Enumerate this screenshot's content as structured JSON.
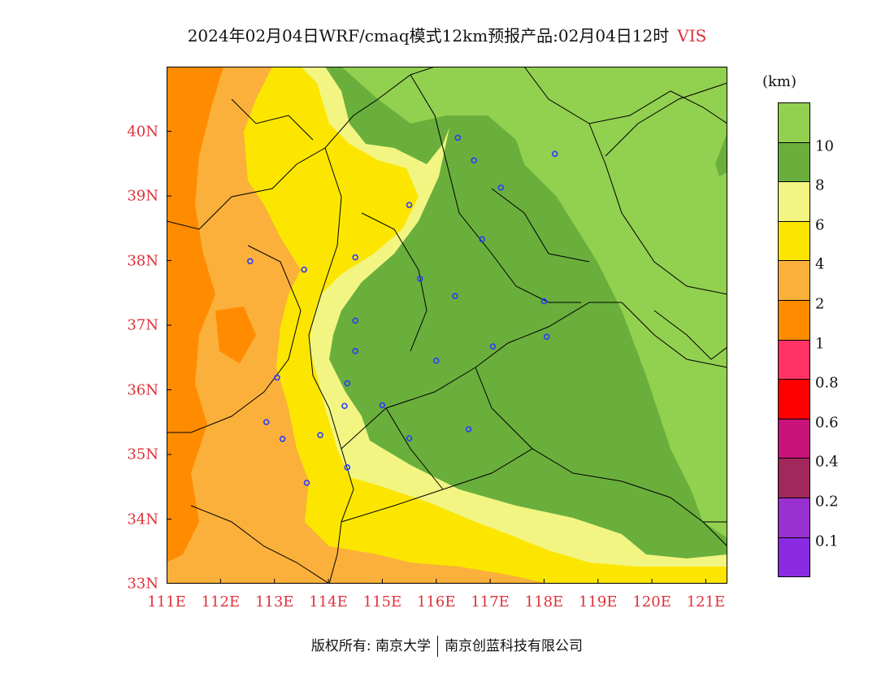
{
  "title": {
    "main": "2024年02月04日WRF/cmaq模式12km预报产品:02月04日12时",
    "variable": "VIS"
  },
  "axes": {
    "y_labels": [
      "40N",
      "39N",
      "38N",
      "37N",
      "36N",
      "35N",
      "34N",
      "33N"
    ],
    "x_labels": [
      "111E",
      "112E",
      "113E",
      "114E",
      "115E",
      "116E",
      "117E",
      "118E",
      "119E",
      "120E",
      "121E"
    ],
    "lon_range": [
      111,
      121.4
    ],
    "lat_range": [
      33,
      41
    ]
  },
  "colorbar": {
    "unit": "(km)",
    "levels": [
      "10",
      "8",
      "6",
      "4",
      "2",
      "1",
      "0.8",
      "0.6",
      "0.4",
      "0.2",
      "0.1"
    ],
    "colors": [
      "#92d050",
      "#6aaf3c",
      "#f2f582",
      "#fce600",
      "#fbb03b",
      "#ff8c00",
      "#ff3366",
      "#ff0000",
      "#c8147a",
      "#a0285a",
      "#9b30d0",
      "#8a2be2"
    ]
  },
  "footer": {
    "left": "版权所有: 南京大学",
    "right": "南京创蓝科技有限公司"
  },
  "stations": [
    {
      "lon": 116.4,
      "lat": 39.9
    },
    {
      "lon": 118.2,
      "lat": 39.65
    },
    {
      "lon": 116.7,
      "lat": 39.55
    },
    {
      "lon": 117.2,
      "lat": 39.13
    },
    {
      "lon": 115.5,
      "lat": 38.86
    },
    {
      "lon": 116.85,
      "lat": 38.33
    },
    {
      "lon": 112.55,
      "lat": 37.99
    },
    {
      "lon": 113.55,
      "lat": 37.86
    },
    {
      "lon": 114.5,
      "lat": 38.05
    },
    {
      "lon": 115.7,
      "lat": 37.72
    },
    {
      "lon": 116.35,
      "lat": 37.45
    },
    {
      "lon": 118.0,
      "lat": 37.37
    },
    {
      "lon": 114.5,
      "lat": 37.07
    },
    {
      "lon": 114.5,
      "lat": 36.6
    },
    {
      "lon": 116.0,
      "lat": 36.45
    },
    {
      "lon": 117.05,
      "lat": 36.67
    },
    {
      "lon": 118.05,
      "lat": 36.82
    },
    {
      "lon": 113.05,
      "lat": 36.19
    },
    {
      "lon": 114.35,
      "lat": 36.1
    },
    {
      "lon": 114.3,
      "lat": 35.75
    },
    {
      "lon": 115.0,
      "lat": 35.76
    },
    {
      "lon": 112.85,
      "lat": 35.5
    },
    {
      "lon": 113.15,
      "lat": 35.24
    },
    {
      "lon": 113.85,
      "lat": 35.3
    },
    {
      "lon": 115.5,
      "lat": 35.25
    },
    {
      "lon": 116.6,
      "lat": 35.39
    },
    {
      "lon": 114.35,
      "lat": 34.8
    },
    {
      "lon": 113.6,
      "lat": 34.56
    }
  ]
}
